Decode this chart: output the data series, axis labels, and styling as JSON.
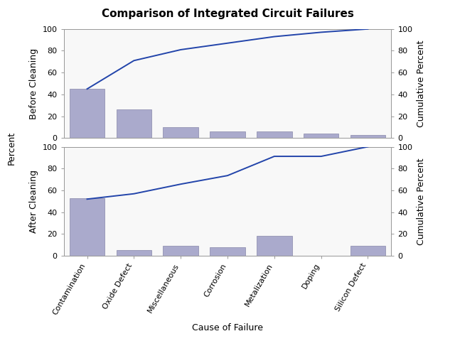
{
  "title": "Comparison of Integrated Circuit Failures",
  "categories": [
    "Contamination",
    "Oxide Defect",
    "Miscellaneous",
    "Corrosion",
    "Metalization",
    "Doping",
    "Silicon Defect"
  ],
  "before_values": [
    45,
    26,
    10,
    6,
    6,
    4,
    3
  ],
  "after_values": [
    53,
    5,
    9,
    8,
    18,
    0,
    9
  ],
  "xlabel": "Cause of Failure",
  "ylabel_left": "Percent",
  "ylabel_right": "Cumulative Percent",
  "ylabel_panel1": "Before Cleaning",
  "ylabel_panel2": "After Cleaning",
  "bar_color": "#aaaacc",
  "bar_edgecolor": "#8888aa",
  "line_color": "#2244aa",
  "background_color": "#ffffff",
  "plot_bg": "#f8f8f8",
  "ylim": [
    0,
    100
  ],
  "title_fontsize": 11,
  "axis_label_fontsize": 9,
  "tick_fontsize": 8,
  "panel_label_fontsize": 9
}
